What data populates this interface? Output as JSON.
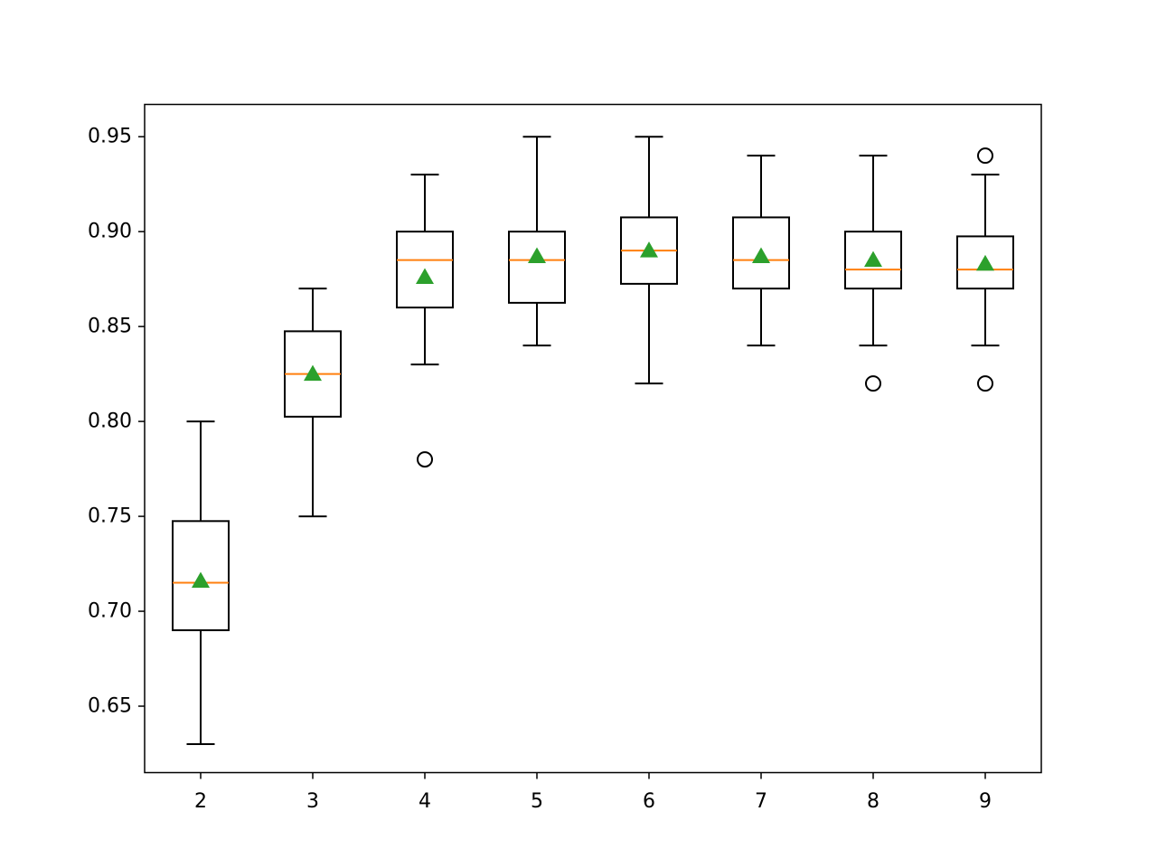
{
  "chart_data": {
    "type": "box",
    "title": "",
    "xlabel": "",
    "ylabel": "",
    "categories": [
      "2",
      "3",
      "4",
      "5",
      "6",
      "7",
      "8",
      "9"
    ],
    "ylim": [
      0.615,
      0.967
    ],
    "yticks": [
      0.65,
      0.7,
      0.75,
      0.8,
      0.85,
      0.9,
      0.95
    ],
    "ytick_labels": [
      "0.65",
      "0.70",
      "0.75",
      "0.80",
      "0.85",
      "0.90",
      "0.95"
    ],
    "grid": false,
    "boxes": [
      {
        "category": "2",
        "whisker_low": 0.63,
        "q1": 0.69,
        "median": 0.715,
        "q3": 0.7475,
        "whisker_high": 0.8,
        "mean": 0.716,
        "outliers": []
      },
      {
        "category": "3",
        "whisker_low": 0.75,
        "q1": 0.8025,
        "median": 0.825,
        "q3": 0.8475,
        "whisker_high": 0.87,
        "mean": 0.825,
        "outliers": []
      },
      {
        "category": "4",
        "whisker_low": 0.83,
        "q1": 0.86,
        "median": 0.885,
        "q3": 0.9,
        "whisker_high": 0.93,
        "mean": 0.876,
        "outliers": [
          0.78
        ]
      },
      {
        "category": "5",
        "whisker_low": 0.84,
        "q1": 0.8625,
        "median": 0.885,
        "q3": 0.9,
        "whisker_high": 0.95,
        "mean": 0.887,
        "outliers": []
      },
      {
        "category": "6",
        "whisker_low": 0.82,
        "q1": 0.8725,
        "median": 0.89,
        "q3": 0.9075,
        "whisker_high": 0.95,
        "mean": 0.89,
        "outliers": []
      },
      {
        "category": "7",
        "whisker_low": 0.84,
        "q1": 0.87,
        "median": 0.885,
        "q3": 0.9075,
        "whisker_high": 0.94,
        "mean": 0.887,
        "outliers": []
      },
      {
        "category": "8",
        "whisker_low": 0.84,
        "q1": 0.87,
        "median": 0.88,
        "q3": 0.9,
        "whisker_high": 0.94,
        "mean": 0.885,
        "outliers": [
          0.82
        ]
      },
      {
        "category": "9",
        "whisker_low": 0.84,
        "q1": 0.87,
        "median": 0.88,
        "q3": 0.8975,
        "whisker_high": 0.93,
        "mean": 0.883,
        "outliers": [
          0.82,
          0.94
        ]
      }
    ],
    "colors": {
      "box": "#000000",
      "median": "#ff7f0e",
      "mean": "#2ca02c",
      "outlier": "#000000"
    }
  }
}
